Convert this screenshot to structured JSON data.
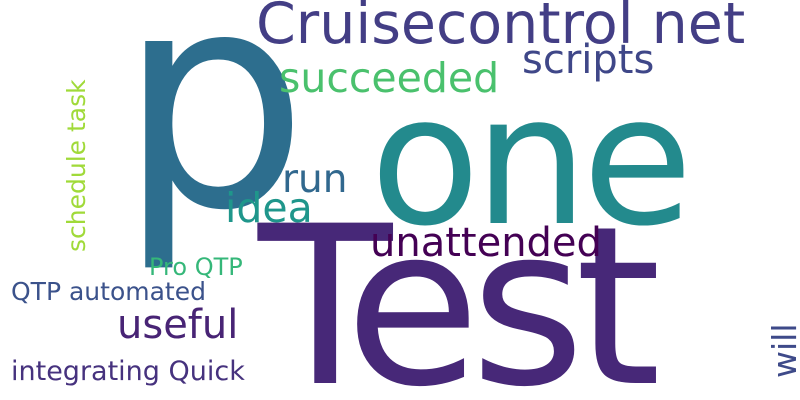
{
  "background": "#ffffff",
  "words": [
    {
      "id": "p",
      "text": "p",
      "color": "#2d6e8e",
      "orientation": "horizontal"
    },
    {
      "id": "test",
      "text": "Test",
      "color": "#472878",
      "orientation": "horizontal"
    },
    {
      "id": "one",
      "text": "one",
      "color": "#238a8d",
      "orientation": "horizontal"
    },
    {
      "id": "cruisecontrol-net",
      "text": "Cruisecontrol net",
      "color": "#433e85",
      "orientation": "horizontal"
    },
    {
      "id": "scripts",
      "text": "scripts",
      "color": "#3f4788",
      "orientation": "horizontal"
    },
    {
      "id": "succeeded",
      "text": "succeeded",
      "color": "#4ac16d",
      "orientation": "horizontal"
    },
    {
      "id": "run",
      "text": "run",
      "color": "#31688e",
      "orientation": "horizontal"
    },
    {
      "id": "idea",
      "text": "idea",
      "color": "#1f968b",
      "orientation": "horizontal"
    },
    {
      "id": "unattended",
      "text": "unattended",
      "color": "#440154",
      "orientation": "horizontal"
    },
    {
      "id": "pro-qtp",
      "text": "Pro QTP",
      "color": "#35b779",
      "orientation": "horizontal"
    },
    {
      "id": "qtp-automated",
      "text": "QTP automated",
      "color": "#3b528b",
      "orientation": "horizontal"
    },
    {
      "id": "useful",
      "text": "useful",
      "color": "#482475",
      "orientation": "horizontal"
    },
    {
      "id": "integrating-quick",
      "text": "integrating Quick",
      "color": "#46327e",
      "orientation": "horizontal"
    },
    {
      "id": "schedule-task",
      "text": "schedule task",
      "color": "#a0da39",
      "orientation": "vertical"
    },
    {
      "id": "will",
      "text": "will",
      "color": "#3e4a89",
      "orientation": "vertical"
    }
  ]
}
